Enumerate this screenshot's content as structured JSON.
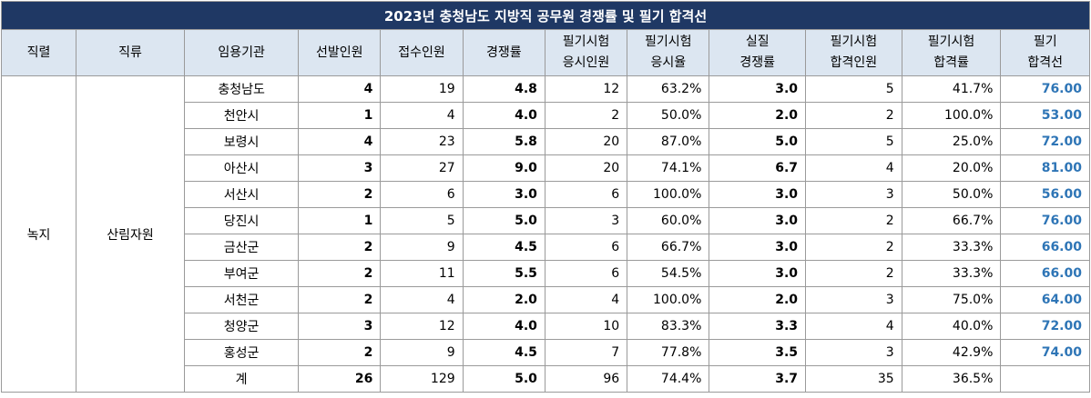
{
  "title": "2023년 충청남도 지방직 공무원 경쟁률 및 필기 합격선",
  "headers": [
    "직렬",
    "직류",
    "임용기관",
    "선발인원",
    "접수인원",
    "경쟁률",
    "필기시험\n응시인원",
    "필기시험\n응시율",
    "실질\n경쟁률",
    "필기시험\n합격인원",
    "필기시험\n합격률",
    "필기\n합격선"
  ],
  "series": "녹지",
  "branch": "산림자원",
  "rows": [
    {
      "agency": "충청남도",
      "selected": "4",
      "applied": "19",
      "competition": "4.8",
      "test_takers": "12",
      "attendance_rate": "63.2%",
      "actual_competition": "3.0",
      "passers": "5",
      "pass_rate": "41.7%",
      "cutoff": "76.00"
    },
    {
      "agency": "천안시",
      "selected": "1",
      "applied": "4",
      "competition": "4.0",
      "test_takers": "2",
      "attendance_rate": "50.0%",
      "actual_competition": "2.0",
      "passers": "2",
      "pass_rate": "100.0%",
      "cutoff": "53.00"
    },
    {
      "agency": "보령시",
      "selected": "4",
      "applied": "23",
      "competition": "5.8",
      "test_takers": "20",
      "attendance_rate": "87.0%",
      "actual_competition": "5.0",
      "passers": "5",
      "pass_rate": "25.0%",
      "cutoff": "72.00"
    },
    {
      "agency": "아산시",
      "selected": "3",
      "applied": "27",
      "competition": "9.0",
      "test_takers": "20",
      "attendance_rate": "74.1%",
      "actual_competition": "6.7",
      "passers": "4",
      "pass_rate": "20.0%",
      "cutoff": "81.00"
    },
    {
      "agency": "서산시",
      "selected": "2",
      "applied": "6",
      "competition": "3.0",
      "test_takers": "6",
      "attendance_rate": "100.0%",
      "actual_competition": "3.0",
      "passers": "3",
      "pass_rate": "50.0%",
      "cutoff": "56.00"
    },
    {
      "agency": "당진시",
      "selected": "1",
      "applied": "5",
      "competition": "5.0",
      "test_takers": "3",
      "attendance_rate": "60.0%",
      "actual_competition": "3.0",
      "passers": "2",
      "pass_rate": "66.7%",
      "cutoff": "76.00"
    },
    {
      "agency": "금산군",
      "selected": "2",
      "applied": "9",
      "competition": "4.5",
      "test_takers": "6",
      "attendance_rate": "66.7%",
      "actual_competition": "3.0",
      "passers": "2",
      "pass_rate": "33.3%",
      "cutoff": "66.00"
    },
    {
      "agency": "부여군",
      "selected": "2",
      "applied": "11",
      "competition": "5.5",
      "test_takers": "6",
      "attendance_rate": "54.5%",
      "actual_competition": "3.0",
      "passers": "2",
      "pass_rate": "33.3%",
      "cutoff": "66.00"
    },
    {
      "agency": "서천군",
      "selected": "2",
      "applied": "4",
      "competition": "2.0",
      "test_takers": "4",
      "attendance_rate": "100.0%",
      "actual_competition": "2.0",
      "passers": "3",
      "pass_rate": "75.0%",
      "cutoff": "64.00"
    },
    {
      "agency": "청양군",
      "selected": "3",
      "applied": "12",
      "competition": "4.0",
      "test_takers": "10",
      "attendance_rate": "83.3%",
      "actual_competition": "3.3",
      "passers": "4",
      "pass_rate": "40.0%",
      "cutoff": "72.00"
    },
    {
      "agency": "홍성군",
      "selected": "2",
      "applied": "9",
      "competition": "4.5",
      "test_takers": "7",
      "attendance_rate": "77.8%",
      "actual_competition": "3.5",
      "passers": "3",
      "pass_rate": "42.9%",
      "cutoff": "74.00"
    },
    {
      "agency": "계",
      "selected": "26",
      "applied": "129",
      "competition": "5.0",
      "test_takers": "96",
      "attendance_rate": "74.4%",
      "actual_competition": "3.7",
      "passers": "35",
      "pass_rate": "36.5%",
      "cutoff": ""
    }
  ],
  "colors": {
    "title_bg": "#1f3864",
    "header_bg": "#dce6f1",
    "cutoff_text": "#2e75b6",
    "grid": "#9a9a9a"
  }
}
